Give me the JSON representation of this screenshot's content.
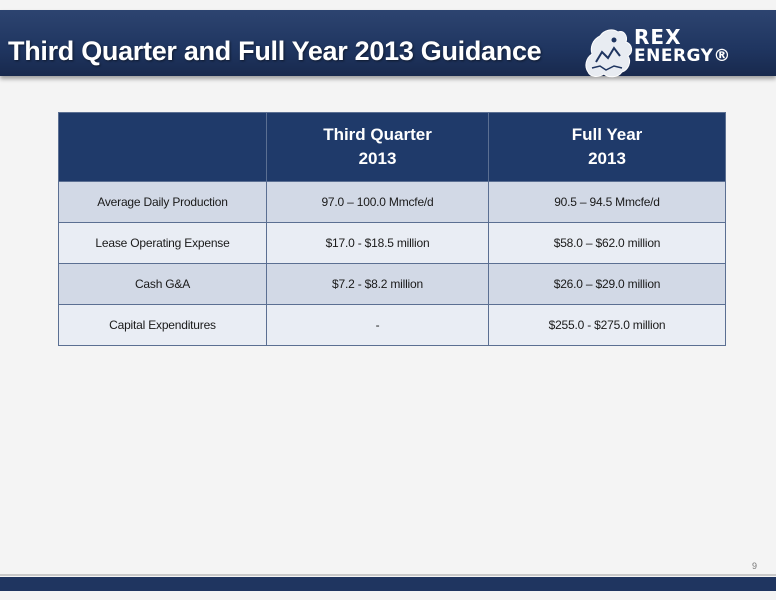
{
  "slide": {
    "title": "Third Quarter and Full Year 2013 Guidance",
    "logo": {
      "line1": "REX",
      "line2": "ENERGY®"
    },
    "page_number": "9"
  },
  "table": {
    "headers": [
      {
        "line1": "",
        "line2": ""
      },
      {
        "line1": "Third Quarter",
        "line2": "2013"
      },
      {
        "line1": "Full Year",
        "line2": "2013"
      }
    ],
    "rows": [
      {
        "metric": "Average Daily Production",
        "q3": "97.0 – 100.0 Mmcfe/d",
        "fy": "90.5 – 94.5 Mmcfe/d"
      },
      {
        "metric": "Lease Operating Expense",
        "q3": "$17.0 - $18.5 million",
        "fy": "$58.0 – $62.0 million"
      },
      {
        "metric": "Cash G&A",
        "q3": "$7.2 - $8.2 million",
        "fy": "$26.0 – $29.0 million"
      },
      {
        "metric": "Capital Expenditures",
        "q3": "-",
        "fy": "$255.0 - $275.0 million"
      }
    ]
  },
  "colors": {
    "title_bar": "#1f3560",
    "header_fill": "#1f3a6a",
    "row_dark": "#d2d9e6",
    "row_light": "#e9edf4"
  }
}
